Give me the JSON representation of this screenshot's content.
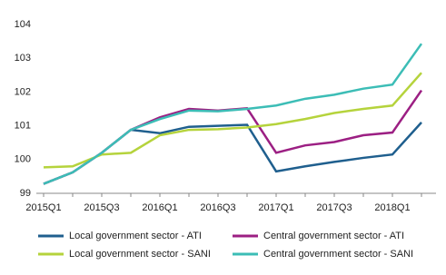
{
  "chart_data": {
    "type": "line",
    "categories": [
      "2015Q1",
      null,
      "2015Q3",
      null,
      "2016Q1",
      null,
      "2016Q3",
      null,
      "2017Q1",
      null,
      "2017Q3",
      null,
      "2018Q1",
      null
    ],
    "series": [
      {
        "name": "Local government sector - ATI",
        "color": "#1f5f8e",
        "values": [
          99.28,
          99.62,
          100.2,
          100.88,
          100.78,
          100.97,
          101.0,
          101.03,
          99.65,
          99.8,
          99.93,
          100.05,
          100.15,
          101.1
        ]
      },
      {
        "name": "Central government sector - ATI",
        "color": "#9c1f83",
        "values": [
          99.28,
          99.62,
          100.2,
          100.88,
          101.25,
          101.5,
          101.45,
          101.52,
          100.2,
          100.42,
          100.52,
          100.72,
          100.8,
          102.05
        ]
      },
      {
        "name": "Local government sector - SANI",
        "color": "#b5d33c",
        "values": [
          99.77,
          99.8,
          100.15,
          100.2,
          100.72,
          100.88,
          100.9,
          100.95,
          101.05,
          101.2,
          101.38,
          101.5,
          101.6,
          102.57
        ]
      },
      {
        "name": "Central government sector - SANI",
        "color": "#3cbdb6",
        "values": [
          99.28,
          99.62,
          100.2,
          100.88,
          101.2,
          101.45,
          101.43,
          101.5,
          101.6,
          101.8,
          101.92,
          102.1,
          102.22,
          103.43
        ]
      }
    ],
    "ylim": [
      99,
      104
    ],
    "yticks": [
      99,
      100,
      101,
      102,
      103,
      104
    ],
    "grid": false
  }
}
